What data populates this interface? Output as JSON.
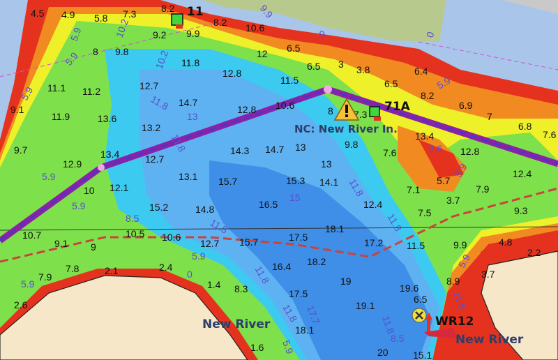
{
  "map": {
    "colors": {
      "water_deep": "#3f8ee8",
      "water_mid": "#5fb2f2",
      "water_shallow": "#3ccaf0",
      "green": "#7ee04a",
      "yellow": "#eef02a",
      "orange": "#f28a22",
      "red": "#e5321e",
      "land": "#f6e7c9",
      "marsh": "#b8c98e",
      "route": "#8a22a8",
      "open_water": "#a9c6ea"
    },
    "labels": {
      "inlet_name": "NC: New River In.",
      "river_left": "New River",
      "river_right": "New River",
      "marker_11": "11",
      "marker_71a": "71A",
      "marker_wr12": "WR12"
    },
    "icons": [
      "warning-triangle-icon",
      "green-daymark-icon",
      "red-buoy-icon",
      "hazard-x-icon"
    ],
    "soundings": [
      "4.5",
      "4.9",
      "5.8",
      "7.3",
      "8.2",
      "9.2",
      "9.9",
      "8.2",
      "10.6",
      "6.5",
      "8",
      "9.8",
      "11.8",
      "12",
      "6.5",
      "3",
      "3.8",
      "6.4",
      "11.1",
      "11.2",
      "12.7",
      "12.8",
      "11.5",
      "6.5",
      "8.2",
      "9.1",
      "11.9",
      "13.6",
      "14.7",
      "12.8",
      "10.6",
      "8",
      "7.3",
      "6.9",
      "7",
      "6.8",
      "7.6",
      "13.2",
      "13",
      "13.4",
      "14.3",
      "14.7",
      "13",
      "9.8",
      "7.6",
      "13.4",
      "12.8",
      "9.7",
      "12.9",
      "12.7",
      "12.4",
      "13.1",
      "15.7",
      "15.3",
      "14.1",
      "5.7",
      "7.9",
      "10",
      "12.1",
      "7.1",
      "3.7",
      "15.2",
      "14.8",
      "16.5",
      "12.4",
      "7.5",
      "9.3",
      "10.7",
      "10.5",
      "10.6",
      "12.7",
      "15.7",
      "17.5",
      "18.1",
      "17.2",
      "11.5",
      "9.9",
      "4.8",
      "2.2",
      "9.1",
      "9",
      "16.4",
      "18.2",
      "3.7",
      "7.8",
      "2.1",
      "2.4",
      "7.9",
      "1.4",
      "8.3",
      "19",
      "19.6",
      "8.9",
      "2.6",
      "17.5",
      "19.1",
      "6.5",
      "18.1",
      "1.6",
      "20",
      "15.1"
    ],
    "contours": [
      "5.9",
      "10.2",
      "10.2",
      "5.9",
      "9.9",
      "0",
      "0",
      "5.9",
      "11.8",
      "11.8",
      "13",
      "5.9",
      "5.9",
      "11.8",
      "5.9",
      "3.6",
      "8.5",
      "11.8",
      "15",
      "5.9",
      "5.9",
      "11.8",
      "5.9",
      "11.8",
      "11.8",
      "0",
      "5.9",
      "11.8",
      "17.7",
      "11.8",
      "8.5",
      "5.9"
    ]
  }
}
